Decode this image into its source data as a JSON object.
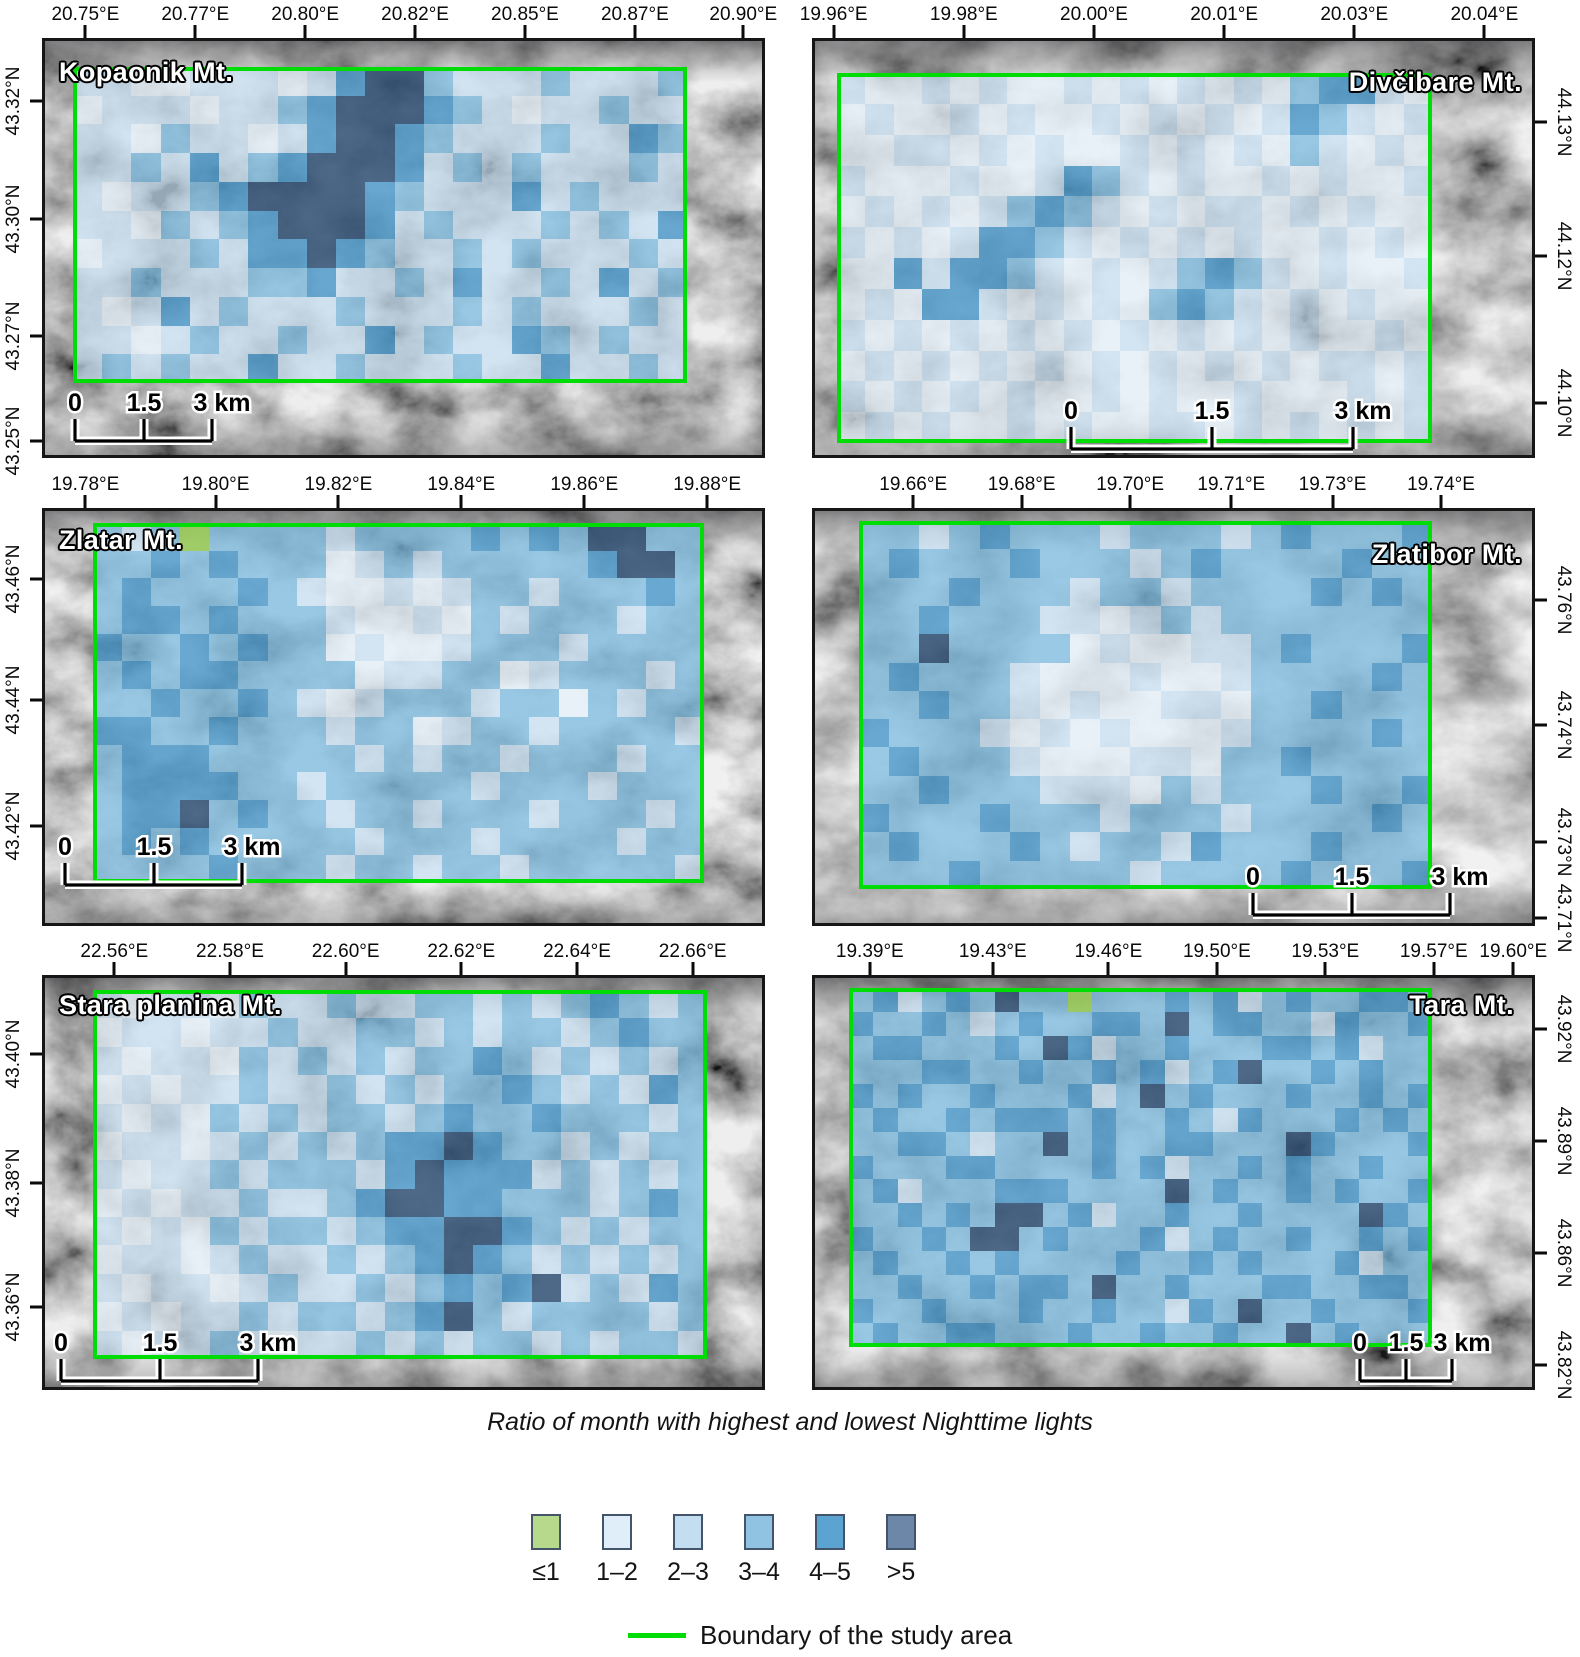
{
  "legend": {
    "title": "Ratio of month with highest and lowest Nighttime lights",
    "classes": [
      {
        "label": "≤1",
        "color": "#b6d98c"
      },
      {
        "label": "1–2",
        "color": "#dfeef8"
      },
      {
        "label": "2–3",
        "color": "#c3def0"
      },
      {
        "label": "3–4",
        "color": "#8fc3e1"
      },
      {
        "label": "4–5",
        "color": "#5ba3d0"
      },
      {
        "label": ">5",
        "color": "#6d87a9"
      }
    ],
    "boundary": {
      "label": "Boundary of the study area",
      "color": "#00dc06"
    }
  },
  "cell_palette": {
    "g": "rgba(154,203,91,0.9)",
    "1": "rgba(229,241,250,0.72)",
    "2": "rgba(199,225,243,0.72)",
    "3": "rgba(122,186,223,0.74)",
    "4": "rgba(66,148,199,0.78)",
    "5": "rgba(43,74,112,0.82)"
  },
  "panels": [
    {
      "name": "Kopaonik Mt.",
      "lon_labels": [
        "20.75°E",
        "20.77°E",
        "20.80°E",
        "20.82°E",
        "20.85°E",
        "20.87°E",
        "20.90°E"
      ],
      "lon_pos": [
        6,
        21.2,
        36.4,
        51.6,
        66.8,
        82,
        97
      ],
      "lat_labels": [
        "43.32°N",
        "43.30°N",
        "43.27°N",
        "43.25°N"
      ],
      "lat_pos": [
        15,
        43,
        71,
        96
      ],
      "scalebar": {
        "labels": [
          "0",
          "1.5",
          "3 km"
        ]
      },
      "grid": [
        "221122212455322232223",
        "122212234555432122322",
        "221322124554322232243",
        "223242345554232322232",
        "212234555543222423222",
        "221323455542322232324",
        "122232445432232322232",
        "223222334223242232423",
        "212423222322232322232",
        "221232232242322432322",
        "232322422322232242232"
      ]
    },
    {
      "name": "Divčibare Mt.",
      "lon_labels": [
        "19.96°E",
        "19.98°E",
        "20.00°E",
        "20.01°E",
        "20.03°E",
        "20.04°E"
      ],
      "lon_pos": [
        3,
        21,
        39,
        57,
        75,
        93
      ],
      "lat_labels": [
        "44.13°N",
        "44.12°N",
        "44.10°N"
      ],
      "lat_pos": [
        20,
        52,
        87
      ],
      "scalebar": {
        "labels": [
          "0",
          "1.5",
          "3 km"
        ]
      },
      "grid": [
        "211212112121212134421",
        "121121211212121243212",
        "112212121121212132121",
        "211121124321211212112",
        "121212343212122121211",
        "212124432121212112121",
        "114244321212343212112",
        "121442121213432121211",
        "212121212121212121121",
        "121212121212121212212",
        "212121211212112111212",
        "121211212112212121212"
      ]
    },
    {
      "name": "Zlatar Mt.",
      "lon_labels": [
        "19.78°E",
        "19.80°E",
        "19.82°E",
        "19.84°E",
        "19.86°E",
        "19.88°E"
      ],
      "lon_pos": [
        6,
        24,
        41,
        58,
        75,
        92
      ],
      "lat_labels": [
        "43.46°N",
        "43.44°N",
        "43.42°N"
      ],
      "lat_pos": [
        17,
        46,
        76
      ],
      "scalebar": {
        "labels": [
          "0",
          "1.5",
          "3 km"
        ]
      },
      "grid": [
        "323g33332333343435533",
        "334343331232333334553",
        "343334321121233233343",
        "344343332112132333233",
        "433434331211233323333",
        "343443333122331233323",
        "334334321233323313233",
        "443343332331233233332",
        "344433333232332333233",
        "344443323333323332333",
        "344534332332333233323",
        "343433333233323333233",
        "333343332332332333332"
      ]
    },
    {
      "name": "Zlatibor Mt.",
      "lon_labels": [
        "19.66°E",
        "19.68°E",
        "19.70°E",
        "19.71°E",
        "19.73°E",
        "19.74°E"
      ],
      "lon_pos": [
        14,
        29,
        44,
        58,
        72,
        87
      ],
      "lat_labels": [
        "43.76°N",
        "43.74°N",
        "43.73°N",
        "43.71°N"
      ],
      "lat_pos": [
        22,
        52,
        80,
        98
      ],
      "scalebar": {
        "labels": [
          "0",
          "1.5",
          "3 km"
        ]
      },
      "grid": [
        "3323433323332343334",
        "3433343332343333433",
        "3334333233233334343",
        "3343332212323333333",
        "3353333121122343334",
        "3433321112112333343",
        "3343321211221334333",
        "4333212121112333343",
        "3433321112213343333",
        "3343332221323334334",
        "4333433323332333343",
        "3433343233243334333",
        "3334333332333343334"
      ]
    },
    {
      "name": "Stara planina Mt.",
      "lon_labels": [
        "22.56°E",
        "22.58°E",
        "22.60°E",
        "22.62°E",
        "22.64°E",
        "22.66°E"
      ],
      "lon_pos": [
        10,
        26,
        42,
        58,
        74,
        90
      ],
      "lat_labels": [
        "43.40°N",
        "43.38°N",
        "43.36°N"
      ],
      "lat_pos": [
        19,
        50,
        80
      ],
      "scalebar": {
        "labels": [
          "0",
          "1.5",
          "3 km"
        ]
      },
      "grid": [
        "212213223223323234323",
        "122122322332323323433",
        "212213232323343232323",
        "121223223232334323243",
        "212132323323433433323",
        "122123232344543323233",
        "212232333245444232323",
        "121223223455443332343",
        "212132332344554323233",
        "122123223234543232323",
        "212212322323434523243",
        "121223233234532333323",
        "212232122323233232332"
      ]
    },
    {
      "name": "Tara Mt.",
      "lon_labels": [
        "19.39°E",
        "19.43°E",
        "19.46°E",
        "19.50°E",
        "19.53°E",
        "19.57°E",
        "19.60°E"
      ],
      "lon_pos": [
        8,
        25,
        41,
        56,
        71,
        86,
        97
      ],
      "lat_labels": [
        "43.92°N",
        "43.89°N",
        "43.86°N",
        "43.82°N"
      ],
      "lat_pos": [
        13,
        40,
        67,
        94
      ],
      "scalebar": {
        "labels": [
          "0",
          "1.5",
          "3 km"
        ]
      },
      "grid": [
        "342343533g33343423433443",
        "433432343344353443324334",
        "344333435423343334434233",
        "333443343343423453343433",
        "434334333423534333433434",
        "343343444343343243334343",
        "334432335343344333543334",
        "433344333343423343433433",
        "342333444333353433434334",
        "334343553423343343333543",
        "433435534333423433433434",
        "343343433334334343334233",
        "334334344353343334433443",
        "433433343343324353343334",
        "343344333433433433534333"
      ]
    }
  ]
}
